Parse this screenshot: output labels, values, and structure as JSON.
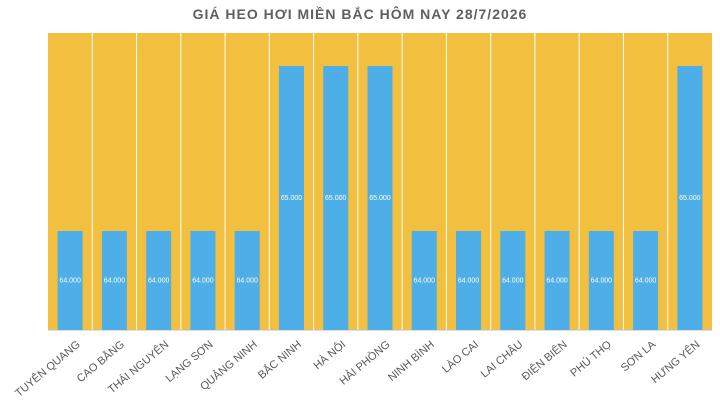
{
  "chart_data": {
    "type": "bar",
    "title": "GIÁ HEO HƠI MIỀN BẮC HÔM NAY 28/7/2026",
    "categories": [
      "TUYÊN QUANG",
      "CAO BẰNG",
      "THÁI NGUYÊN",
      "LẠNG SƠN",
      "QUẢNG NINH",
      "BẮC NINH",
      "HÀ NỘI",
      "HẢI PHÒNG",
      "NINH BÌNH",
      "LÀO CAI",
      "LAI CHÂU",
      "ĐIỆN BIÊN",
      "PHÚ THỌ",
      "SƠN LA",
      "HƯNG YÊN"
    ],
    "values": [
      64000,
      64000,
      64000,
      64000,
      64000,
      65000,
      65000,
      65000,
      64000,
      64000,
      64000,
      64000,
      64000,
      64000,
      65000
    ],
    "value_labels": [
      "64.000",
      "64.000",
      "64.000",
      "64.000",
      "64.000",
      "65.000",
      "65.000",
      "65.000",
      "64.000",
      "64.000",
      "64.000",
      "64.000",
      "64.000",
      "64.000",
      "65.000"
    ],
    "ylim": [
      63400,
      65200
    ],
    "xlabel": "",
    "ylabel": "",
    "plot_background": "#f3bf3f",
    "bar_color": "#4eaee8",
    "grid": "vertical-white"
  }
}
